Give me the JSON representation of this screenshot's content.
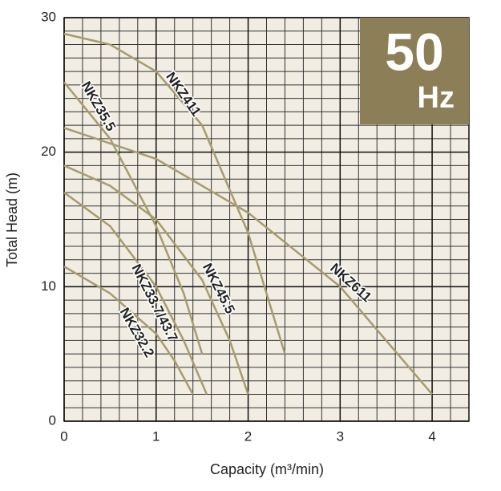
{
  "chart_data": {
    "type": "line",
    "x_label": "Capacity (m³/min)",
    "y_label": "Total Head (m)",
    "badge": {
      "frequency": "50",
      "unit": "Hz"
    },
    "xlim": [
      0,
      4.4
    ],
    "ylim": [
      0,
      30
    ],
    "xticks": [
      0,
      1,
      2,
      3,
      4
    ],
    "yticks": [
      0,
      10,
      20,
      30
    ],
    "grid": true,
    "series": [
      {
        "name": "NKZ611",
        "color": "#a89b6c",
        "x": [
          0,
          1,
          2,
          3,
          3.5,
          4
        ],
        "values": [
          21.8,
          19.5,
          15.5,
          10,
          6,
          2
        ]
      },
      {
        "name": "NKZ411",
        "color": "#a89b6c",
        "x": [
          0,
          0.5,
          1,
          1.5,
          2,
          2.2,
          2.4
        ],
        "values": [
          28.8,
          28,
          26,
          22,
          14,
          9.5,
          5
        ]
      },
      {
        "name": "NKZ35.5",
        "color": "#a89b6c",
        "x": [
          0,
          0.5,
          1,
          1.3,
          1.5
        ],
        "values": [
          25.2,
          21,
          14.5,
          9.5,
          5
        ]
      },
      {
        "name": "NKZ45.5",
        "color": "#a89b6c",
        "x": [
          0,
          0.5,
          1,
          1.5,
          1.8,
          2
        ],
        "values": [
          19,
          17.5,
          15,
          10.5,
          6,
          2
        ]
      },
      {
        "name": "NKZ33.7/43.7",
        "color": "#a89b6c",
        "x": [
          0,
          0.5,
          1,
          1.3,
          1.55
        ],
        "values": [
          17,
          14.5,
          10,
          6,
          2
        ]
      },
      {
        "name": "NKZ32.2",
        "color": "#a89b6c",
        "x": [
          0,
          0.5,
          1,
          1.2,
          1.4
        ],
        "values": [
          11.5,
          9.5,
          6.5,
          4.5,
          2
        ]
      }
    ]
  }
}
